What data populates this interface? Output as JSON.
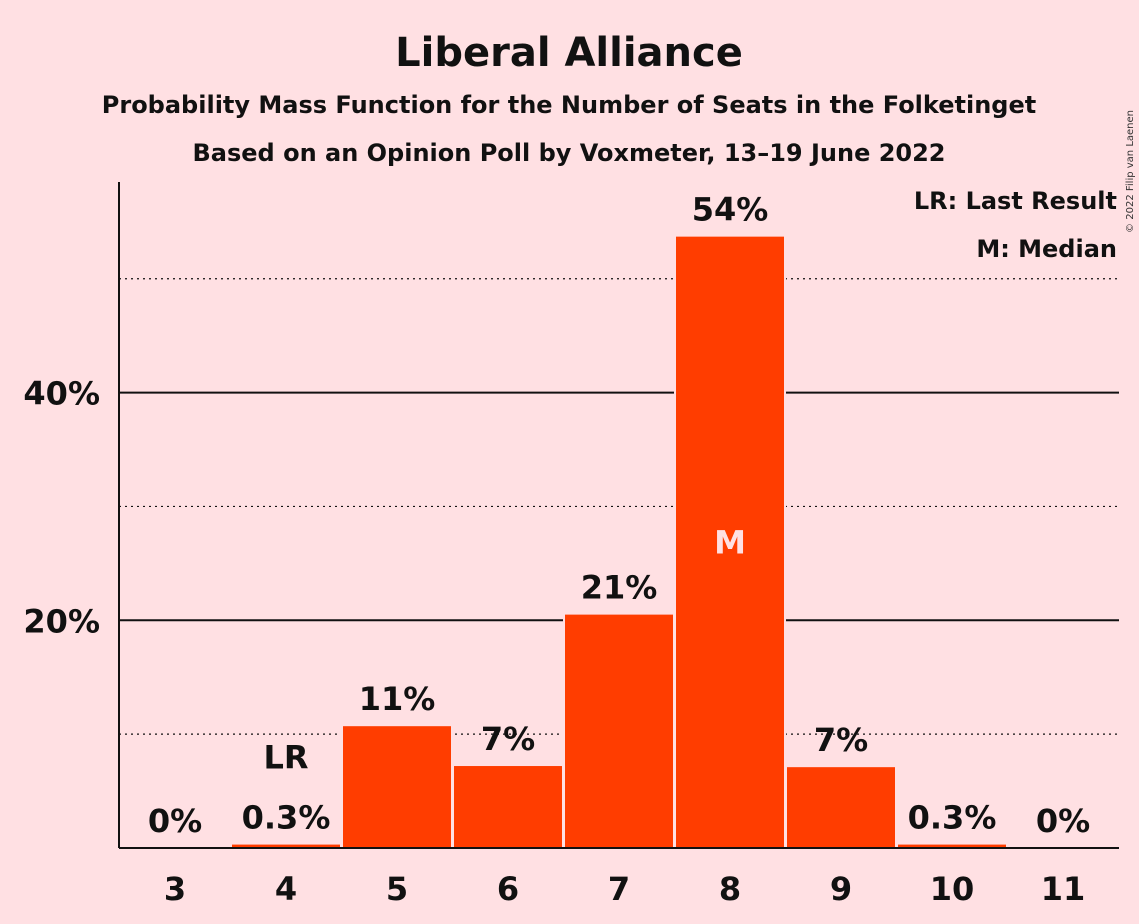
{
  "chart_data": {
    "type": "bar",
    "title": "Liberal Alliance",
    "subtitle": "Probability Mass Function for the Number of Seats in the Folketinget",
    "subtitle2": "Based on an Opinion Poll by Voxmeter, 13–19 June 2022",
    "copyright": "© 2022 Filip van Laenen",
    "categories": [
      "3",
      "4",
      "5",
      "6",
      "7",
      "8",
      "9",
      "10",
      "11"
    ],
    "values": [
      0,
      0.3,
      10.7,
      7.2,
      20.5,
      53.7,
      7.1,
      0.3,
      0
    ],
    "data_labels": [
      "0%",
      "0.3%",
      "11%",
      "7%",
      "21%",
      "54%",
      "7%",
      "0.3%",
      "0%"
    ],
    "ylim": [
      0,
      58.5
    ],
    "yticks": [
      20,
      40
    ],
    "ytick_labels": [
      "20%",
      "40%"
    ],
    "minor_gridlines": [
      10,
      30,
      50
    ],
    "last_result_index": 1,
    "last_result_mark": "LR",
    "median_index": 5,
    "median_mark": "M",
    "legend": {
      "position": "top-right",
      "lines": [
        "LR: Last Result",
        "M: Median"
      ]
    },
    "colors": {
      "bar": "#FF3D00",
      "background": "#FFE0E3",
      "text": "#111111"
    }
  }
}
